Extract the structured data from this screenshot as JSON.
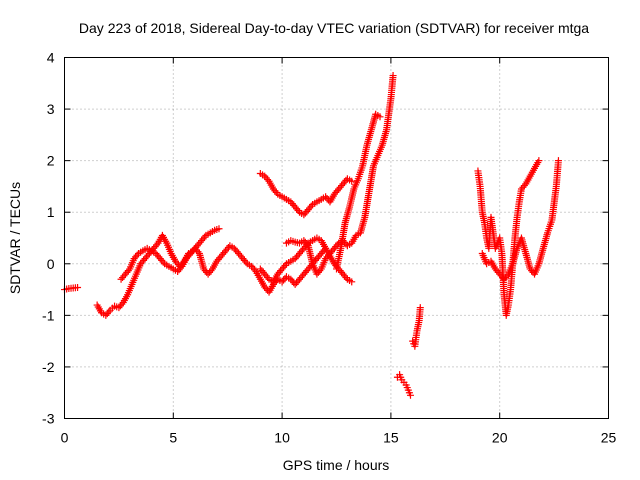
{
  "chart_data": {
    "type": "scatter",
    "title": "Day 223 of 2018, Sidereal Day-to-day VTEC variation (SDTVAR) for receiver mtga",
    "xlabel": "GPS time / hours",
    "ylabel": "SDTVAR / TECUs",
    "xlim": [
      0,
      25
    ],
    "ylim": [
      -3,
      4
    ],
    "xticks": [
      0,
      5,
      10,
      15,
      20,
      25
    ],
    "yticks": [
      -3,
      -2,
      -1,
      0,
      1,
      2,
      3,
      4
    ],
    "grid": true,
    "marker": "+",
    "color": "#ff0000",
    "series": [
      {
        "name": "SDTVAR",
        "segments": [
          {
            "x": [
              0.0,
              0.2,
              0.4,
              0.6
            ],
            "y": [
              -0.5,
              -0.48,
              -0.47,
              -0.46
            ]
          },
          {
            "x": [
              1.5,
              1.7,
              1.9,
              2.1,
              2.3,
              2.5,
              2.7,
              2.9,
              3.1,
              3.3,
              3.5,
              3.7,
              3.9,
              4.1,
              4.3,
              4.5,
              4.7,
              4.9,
              5.1,
              5.3,
              5.5,
              5.7,
              5.9,
              6.1,
              6.3,
              6.5,
              6.7,
              6.9,
              7.1
            ],
            "y": [
              -0.8,
              -0.95,
              -1.0,
              -0.9,
              -0.82,
              -0.85,
              -0.75,
              -0.6,
              -0.4,
              -0.2,
              0.0,
              0.1,
              0.2,
              0.3,
              0.4,
              0.55,
              0.4,
              0.2,
              0.05,
              -0.05,
              0.05,
              0.2,
              0.25,
              0.35,
              0.45,
              0.55,
              0.6,
              0.65,
              0.68
            ]
          },
          {
            "x": [
              2.6,
              2.8,
              3.0,
              3.2,
              3.4,
              3.6,
              3.8,
              4.0,
              4.2,
              4.4,
              4.6,
              4.8,
              5.0,
              5.2,
              5.4,
              5.6,
              5.8,
              6.0,
              6.2,
              6.4,
              6.6,
              6.8,
              7.0,
              7.2,
              7.4,
              7.6,
              7.8,
              8.0,
              8.2,
              8.4,
              8.6,
              8.8,
              9.0,
              9.2,
              9.4,
              9.6,
              9.8,
              10.0,
              10.2,
              10.4,
              10.6,
              10.8,
              11.0,
              11.2,
              11.4,
              11.6,
              11.8,
              12.0
            ],
            "y": [
              -0.3,
              -0.2,
              -0.1,
              0.1,
              0.2,
              0.25,
              0.3,
              0.25,
              0.2,
              0.1,
              0.0,
              -0.05,
              -0.1,
              -0.15,
              -0.05,
              0.1,
              0.2,
              0.3,
              0.2,
              -0.1,
              -0.2,
              -0.1,
              0.05,
              0.15,
              0.25,
              0.35,
              0.3,
              0.2,
              0.1,
              0.0,
              -0.05,
              -0.15,
              -0.3,
              -0.45,
              -0.55,
              -0.4,
              -0.3,
              -0.35,
              -0.25,
              -0.3,
              -0.4,
              -0.3,
              -0.2,
              -0.1,
              0.0,
              0.1,
              0.2,
              0.3
            ]
          },
          {
            "x": [
              9.0,
              9.2,
              9.4,
              9.6,
              9.8,
              10.0,
              10.2,
              10.4,
              10.6,
              10.8,
              11.0,
              11.2,
              11.4,
              11.6,
              11.8,
              12.0,
              12.2,
              12.4,
              12.6,
              12.8,
              13.0,
              13.2
            ],
            "y": [
              -0.1,
              -0.2,
              -0.3,
              -0.35,
              -0.2,
              -0.1,
              0.0,
              0.05,
              0.1,
              0.2,
              0.3,
              0.4,
              0.45,
              0.5,
              0.45,
              0.3,
              0.15,
              0.0,
              -0.1,
              -0.2,
              -0.3,
              -0.35
            ]
          },
          {
            "x": [
              9.0,
              9.2,
              9.4,
              9.6,
              9.8,
              10.0,
              10.2,
              10.4,
              10.6,
              10.8,
              11.0,
              11.2,
              11.4,
              11.6,
              11.8,
              12.0,
              12.2,
              12.4,
              12.6,
              12.8,
              13.0,
              13.2
            ],
            "y": [
              1.75,
              1.7,
              1.6,
              1.45,
              1.35,
              1.3,
              1.25,
              1.2,
              1.1,
              1.0,
              0.95,
              1.05,
              1.15,
              1.2,
              1.25,
              1.3,
              1.2,
              1.35,
              1.45,
              1.55,
              1.65,
              1.6
            ]
          },
          {
            "x": [
              10.2,
              10.4,
              10.6,
              10.8,
              11.0,
              11.2,
              11.4,
              11.6,
              11.8,
              12.0,
              12.2,
              12.4,
              12.6,
              12.8,
              13.0,
              13.2,
              13.4,
              13.6,
              13.8,
              14.0,
              14.2,
              14.4,
              14.6,
              14.8,
              15.0,
              15.1
            ],
            "y": [
              0.4,
              0.45,
              0.42,
              0.4,
              0.45,
              0.35,
              0.0,
              -0.2,
              -0.1,
              0.1,
              0.2,
              0.3,
              0.4,
              0.45,
              0.35,
              0.4,
              0.55,
              0.6,
              0.9,
              1.4,
              1.9,
              2.1,
              2.3,
              2.6,
              3.2,
              3.65
            ]
          },
          {
            "x": [
              12.5,
              12.7,
              12.9,
              13.1,
              13.3,
              13.5,
              13.7,
              13.9,
              14.1,
              14.3,
              14.5
            ],
            "y": [
              -0.1,
              0.3,
              0.8,
              1.1,
              1.45,
              1.65,
              1.9,
              2.3,
              2.6,
              2.9,
              2.85
            ]
          },
          {
            "x": [
              15.3,
              15.4,
              15.5,
              15.6,
              15.7,
              15.8,
              15.9
            ],
            "y": [
              -2.2,
              -2.15,
              -2.25,
              -2.3,
              -2.35,
              -2.45,
              -2.55
            ]
          },
          {
            "x": [
              16.0,
              16.1,
              16.2,
              16.3,
              16.35
            ],
            "y": [
              -1.5,
              -1.6,
              -1.3,
              -1.1,
              -0.85
            ]
          },
          {
            "x": [
              19.0,
              19.1,
              19.2,
              19.3,
              19.4,
              19.5,
              19.6,
              19.8,
              20.0,
              20.1,
              20.2,
              20.3,
              20.4,
              20.5,
              20.6,
              20.7,
              20.8,
              20.9,
              21.0,
              21.2,
              21.4,
              21.6,
              21.8
            ],
            "y": [
              1.8,
              1.5,
              1.0,
              0.8,
              0.5,
              0.3,
              0.9,
              0.3,
              0.5,
              0.2,
              -0.6,
              -1.0,
              -0.8,
              -0.5,
              0.0,
              0.5,
              0.9,
              1.2,
              1.45,
              1.55,
              1.7,
              1.85,
              2.0
            ]
          },
          {
            "x": [
              19.2,
              19.4,
              19.6,
              19.8,
              20.0,
              20.2,
              20.4,
              20.6,
              20.8,
              21.0,
              21.2,
              21.4,
              21.6,
              21.8,
              22.0,
              22.2,
              22.4,
              22.6,
              22.7
            ],
            "y": [
              0.2,
              0.0,
              0.05,
              -0.1,
              -0.2,
              -0.3,
              -0.2,
              0.0,
              0.3,
              0.5,
              0.2,
              -0.1,
              -0.2,
              0.0,
              0.3,
              0.6,
              0.85,
              1.5,
              2.0
            ]
          }
        ]
      }
    ]
  }
}
